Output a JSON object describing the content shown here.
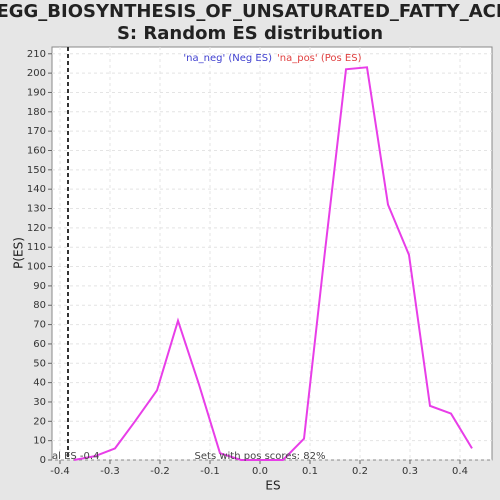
{
  "chart_data": {
    "type": "line",
    "title": [
      "KEGG_BIOSYNTHESIS_OF_UNSATURATED_FATTY_ACID",
      "S: Random ES distribution"
    ],
    "xlabel": "ES",
    "ylabel": "P(ES)",
    "x": [
      -0.372,
      -0.33,
      -0.29,
      -0.25,
      -0.206,
      -0.164,
      -0.122,
      -0.08,
      -0.038,
      0.004,
      0.046,
      0.088,
      0.13,
      0.172,
      0.214,
      0.256,
      0.298,
      0.34,
      0.382,
      0.424
    ],
    "series": [
      {
        "name": "ES distribution",
        "color": "#e83ee8",
        "values": [
          0,
          2,
          6,
          20,
          36,
          72,
          39,
          3.5,
          0,
          0,
          0,
          11,
          108,
          202,
          203,
          132,
          106,
          28,
          24,
          6
        ]
      }
    ],
    "xlim": [
      -0.416,
      0.464
    ],
    "ylim": [
      0,
      213.5
    ],
    "xticks": [
      -0.4,
      -0.3,
      -0.2,
      -0.1,
      {
        "value": 0,
        "label": "0.0"
      },
      0.1,
      0.2,
      0.3,
      0.4
    ],
    "yticks": [
      0,
      10,
      20,
      30,
      40,
      50,
      60,
      70,
      80,
      90,
      100,
      110,
      120,
      130,
      140,
      150,
      160,
      170,
      180,
      190,
      200,
      210
    ],
    "grid": true,
    "legend": [
      {
        "text": "'na_neg' (Neg ES)",
        "color": "#4040d0"
      },
      {
        "text": "'na_pos' (Pos ES)",
        "color": "#e04040"
      }
    ],
    "actual_es": {
      "value": -0.384,
      "label": "al ES -0.4"
    },
    "annotation": "Sets with pos scores: 82%"
  }
}
